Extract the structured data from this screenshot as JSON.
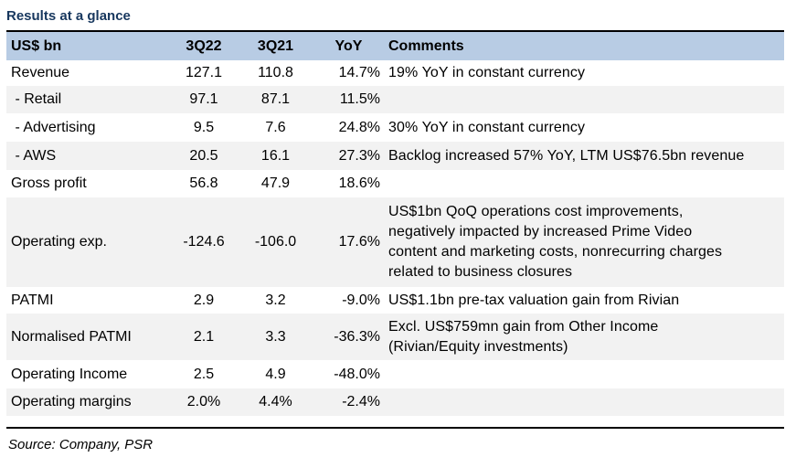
{
  "title": "Results at a glance",
  "headers": {
    "label": "US$ bn",
    "c1": "3Q22",
    "c2": "3Q21",
    "c3": "YoY",
    "c4": "Comments"
  },
  "rows": [
    {
      "label": "Revenue",
      "v1": "127.1",
      "v2": "110.8",
      "yoy": "14.7%",
      "comment": [
        "19% YoY in constant currency"
      ]
    },
    {
      "label": " - Retail",
      "v1": "97.1",
      "v2": "87.1",
      "yoy": "11.5%",
      "comment": []
    },
    {
      "label": " - Advertising",
      "v1": "9.5",
      "v2": "7.6",
      "yoy": "24.8%",
      "comment": [
        "30% YoY in constant currency"
      ]
    },
    {
      "label": " - AWS",
      "v1": "20.5",
      "v2": "16.1",
      "yoy": "27.3%",
      "comment": [
        "Backlog increased 57% YoY, LTM US$76.5bn revenue"
      ]
    },
    {
      "label": "Gross profit",
      "v1": "56.8",
      "v2": "47.9",
      "yoy": "18.6%",
      "comment": []
    },
    {
      "label": "Operating exp.",
      "v1": "-124.6",
      "v2": "-106.0",
      "yoy": "17.6%",
      "comment": [
        "US$1bn QoQ operations cost improvements,",
        "negatively impacted by increased Prime Video",
        "content and marketing costs, nonrecurring charges",
        "related to  business closures"
      ]
    },
    {
      "label": "PATMI",
      "v1": "2.9",
      "v2": "3.2",
      "yoy": "-9.0%",
      "comment": [
        "US$1.1bn pre-tax valuation gain from Rivian"
      ]
    },
    {
      "label": "Normalised PATMI",
      "v1": "2.1",
      "v2": "3.3",
      "yoy": "-36.3%",
      "comment": [
        "Excl. US$759mn gain from Other Income",
        "(Rivian/Equity investments)"
      ]
    },
    {
      "label": "Operating Income",
      "v1": "2.5",
      "v2": "4.9",
      "yoy": "-48.0%",
      "comment": []
    },
    {
      "label": "Operating margins",
      "v1": "2.0%",
      "v2": "4.4%",
      "yoy": "-2.4%",
      "comment": []
    }
  ],
  "source": "Source: Company, PSR",
  "colors": {
    "title": "#17375e",
    "header_bg": "#b8cce4",
    "alt_row_bg": "#f2f2f2"
  }
}
